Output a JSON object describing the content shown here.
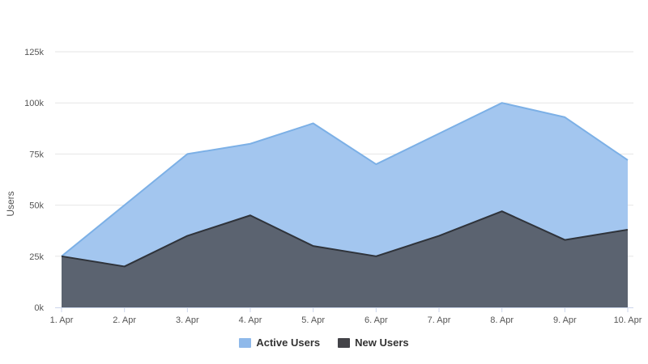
{
  "chart_data": {
    "type": "area",
    "title": "",
    "xlabel": "",
    "ylabel": "Users",
    "categories": [
      "1. Apr",
      "2. Apr",
      "3. Apr",
      "4. Apr",
      "5. Apr",
      "6. Apr",
      "7. Apr",
      "8. Apr",
      "9. Apr",
      "10. Apr"
    ],
    "ylim": [
      0,
      125000
    ],
    "yticks": [
      0,
      25000,
      50000,
      75000,
      100000,
      125000
    ],
    "ytick_labels": [
      "0k",
      "25k",
      "50k",
      "75k",
      "100k",
      "125k"
    ],
    "grid": true,
    "overlapping": true,
    "legend_position": "bottom",
    "series": [
      {
        "name": "Active Users",
        "values": [
          25000,
          50000,
          75000,
          80000,
          90000,
          70000,
          85000,
          100000,
          93000,
          72000
        ],
        "color": "#a3c6ef",
        "line_color": "#7cb0e6"
      },
      {
        "name": "New Users",
        "values": [
          25000,
          20000,
          35000,
          45000,
          30000,
          25000,
          35000,
          47000,
          33000,
          38000
        ],
        "color": "#5b6370",
        "line_color": "#2f333a"
      }
    ],
    "legend_colors": [
      "#8fb9ea",
      "#434348"
    ]
  }
}
